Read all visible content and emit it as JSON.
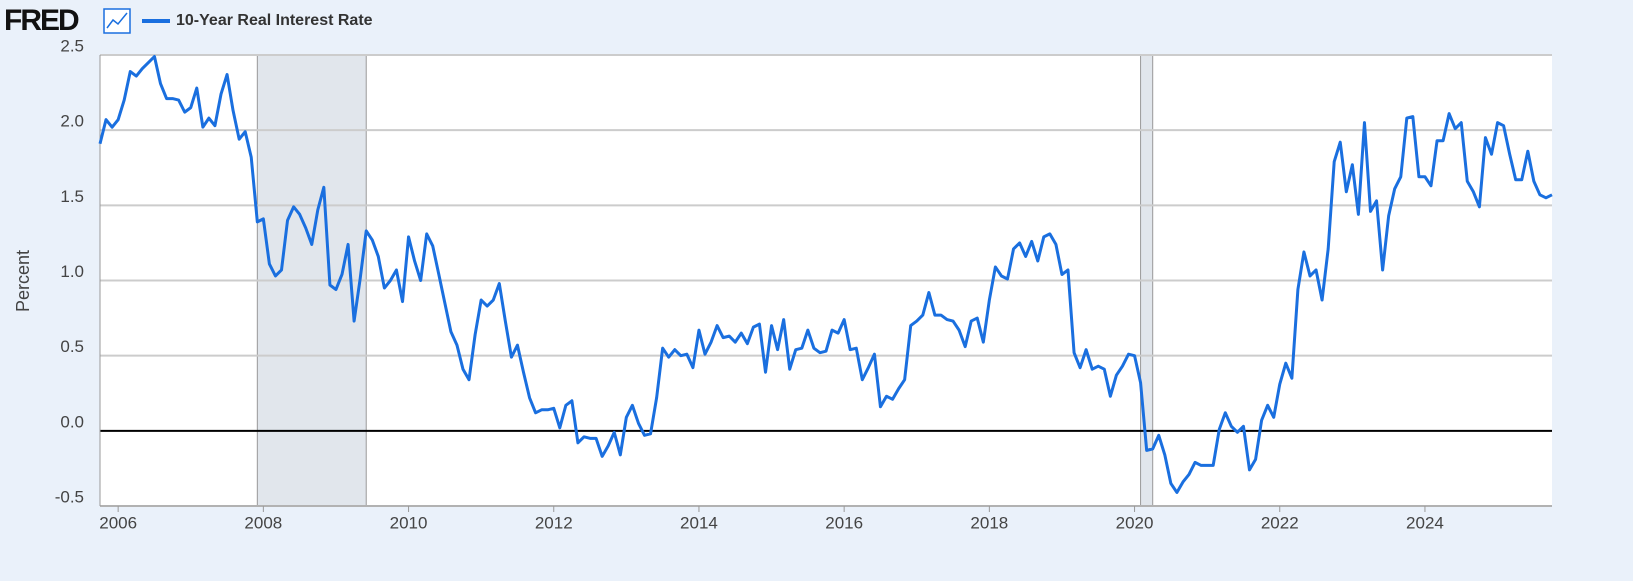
{
  "header": {
    "logo": "FRED"
  },
  "chart_data": {
    "type": "line",
    "y_label": "Percent",
    "x": [
      2005.75,
      2005.833,
      2005.917,
      2006,
      2006.083,
      2006.167,
      2006.25,
      2006.333,
      2006.417,
      2006.5,
      2006.583,
      2006.667,
      2006.75,
      2006.833,
      2006.917,
      2007,
      2007.083,
      2007.167,
      2007.25,
      2007.333,
      2007.417,
      2007.5,
      2007.583,
      2007.667,
      2007.75,
      2007.833,
      2007.917,
      2008,
      2008.083,
      2008.167,
      2008.25,
      2008.333,
      2008.417,
      2008.5,
      2008.583,
      2008.667,
      2008.75,
      2008.833,
      2008.917,
      2009,
      2009.083,
      2009.167,
      2009.25,
      2009.333,
      2009.417,
      2009.5,
      2009.583,
      2009.667,
      2009.75,
      2009.833,
      2009.917,
      2010,
      2010.083,
      2010.167,
      2010.25,
      2010.333,
      2010.417,
      2010.5,
      2010.583,
      2010.667,
      2010.75,
      2010.833,
      2010.917,
      2011,
      2011.083,
      2011.167,
      2011.25,
      2011.333,
      2011.417,
      2011.5,
      2011.583,
      2011.667,
      2011.75,
      2011.833,
      2011.917,
      2012,
      2012.083,
      2012.167,
      2012.25,
      2012.333,
      2012.417,
      2012.5,
      2012.583,
      2012.667,
      2012.75,
      2012.833,
      2012.917,
      2013,
      2013.083,
      2013.167,
      2013.25,
      2013.333,
      2013.417,
      2013.5,
      2013.583,
      2013.667,
      2013.75,
      2013.833,
      2013.917,
      2014,
      2014.083,
      2014.167,
      2014.25,
      2014.333,
      2014.417,
      2014.5,
      2014.583,
      2014.667,
      2014.75,
      2014.833,
      2014.917,
      2015,
      2015.083,
      2015.167,
      2015.25,
      2015.333,
      2015.417,
      2015.5,
      2015.583,
      2015.667,
      2015.75,
      2015.833,
      2015.917,
      2016,
      2016.083,
      2016.167,
      2016.25,
      2016.333,
      2016.417,
      2016.5,
      2016.583,
      2016.667,
      2016.75,
      2016.833,
      2016.917,
      2017,
      2017.083,
      2017.167,
      2017.25,
      2017.333,
      2017.417,
      2017.5,
      2017.583,
      2017.667,
      2017.75,
      2017.833,
      2017.917,
      2018,
      2018.083,
      2018.167,
      2018.25,
      2018.333,
      2018.417,
      2018.5,
      2018.583,
      2018.667,
      2018.75,
      2018.833,
      2018.917,
      2019,
      2019.083,
      2019.167,
      2019.25,
      2019.333,
      2019.417,
      2019.5,
      2019.583,
      2019.667,
      2019.75,
      2019.833,
      2019.917,
      2020,
      2020.083,
      2020.167,
      2020.25,
      2020.333,
      2020.417,
      2020.5,
      2020.583,
      2020.667,
      2020.75,
      2020.833,
      2020.917,
      2021,
      2021.083,
      2021.167,
      2021.25,
      2021.333,
      2021.417,
      2021.5,
      2021.583,
      2021.667,
      2021.75,
      2021.833,
      2021.917,
      2022,
      2022.083,
      2022.167,
      2022.25,
      2022.333,
      2022.417,
      2022.5,
      2022.583,
      2022.667,
      2022.75,
      2022.833,
      2022.917,
      2023,
      2023.083,
      2023.167,
      2023.25,
      2023.333,
      2023.417,
      2023.5,
      2023.583,
      2023.667,
      2023.75,
      2023.833,
      2023.917,
      2024,
      2024.083,
      2024.167,
      2024.25,
      2024.333,
      2024.417,
      2024.5,
      2024.583,
      2024.667,
      2024.75,
      2024.833,
      2024.917,
      2025,
      2025.083,
      2025.167,
      2025.25,
      2025.333,
      2025.417,
      2025.5,
      2025.583,
      2025.667,
      2025.75
    ],
    "series": [
      {
        "name": "10-Year Real Interest Rate",
        "color": "#1a6fdf",
        "values": [
          1.91,
          2.07,
          2.02,
          2.07,
          2.2,
          2.39,
          2.36,
          2.41,
          2.45,
          2.49,
          2.31,
          2.21,
          2.21,
          2.2,
          2.12,
          2.15,
          2.28,
          2.02,
          2.08,
          2.03,
          2.24,
          2.37,
          2.13,
          1.94,
          1.99,
          1.82,
          1.39,
          1.41,
          1.11,
          1.03,
          1.07,
          1.4,
          1.49,
          1.44,
          1.35,
          1.24,
          1.47,
          1.62,
          0.97,
          0.94,
          1.04,
          1.24,
          0.73,
          1.01,
          1.33,
          1.27,
          1.16,
          0.95,
          1.0,
          1.07,
          0.86,
          1.29,
          1.13,
          1.0,
          1.31,
          1.23,
          1.04,
          0.85,
          0.66,
          0.57,
          0.41,
          0.34,
          0.64,
          0.87,
          0.83,
          0.87,
          0.98,
          0.73,
          0.49,
          0.57,
          0.39,
          0.22,
          0.12,
          0.14,
          0.14,
          0.15,
          0.02,
          0.17,
          0.2,
          -0.08,
          -0.04,
          -0.05,
          -0.05,
          -0.17,
          -0.1,
          -0.01,
          -0.16,
          0.09,
          0.17,
          0.05,
          -0.03,
          -0.02,
          0.22,
          0.55,
          0.49,
          0.54,
          0.5,
          0.51,
          0.42,
          0.67,
          0.51,
          0.59,
          0.7,
          0.62,
          0.63,
          0.59,
          0.65,
          0.58,
          0.69,
          0.71,
          0.39,
          0.7,
          0.54,
          0.74,
          0.41,
          0.54,
          0.55,
          0.67,
          0.55,
          0.52,
          0.53,
          0.67,
          0.65,
          0.74,
          0.54,
          0.55,
          0.34,
          0.42,
          0.51,
          0.16,
          0.23,
          0.21,
          0.28,
          0.34,
          0.7,
          0.73,
          0.77,
          0.92,
          0.77,
          0.77,
          0.74,
          0.73,
          0.67,
          0.56,
          0.73,
          0.75,
          0.59,
          0.87,
          1.09,
          1.03,
          1.01,
          1.21,
          1.25,
          1.16,
          1.26,
          1.13,
          1.29,
          1.31,
          1.24,
          1.04,
          1.07,
          0.52,
          0.42,
          0.54,
          0.41,
          0.43,
          0.41,
          0.23,
          0.37,
          0.43,
          0.51,
          0.5,
          0.32,
          -0.13,
          -0.12,
          -0.03,
          -0.16,
          -0.35,
          -0.41,
          -0.34,
          -0.29,
          -0.21,
          -0.23,
          -0.23,
          -0.23,
          0.01,
          0.12,
          0.03,
          -0.01,
          0.03,
          -0.26,
          -0.19,
          0.07,
          0.17,
          0.09,
          0.31,
          0.45,
          0.35,
          0.94,
          1.19,
          1.03,
          1.07,
          0.87,
          1.21,
          1.79,
          1.92,
          1.59,
          1.77,
          1.44,
          2.05,
          1.46,
          1.53,
          1.07,
          1.43,
          1.61,
          1.69,
          2.08,
          2.09,
          1.69,
          1.69,
          1.63,
          1.93,
          1.93,
          2.11,
          2.01,
          2.05,
          1.66,
          1.59,
          1.49,
          1.95,
          1.84,
          2.05,
          2.03,
          1.84,
          1.67,
          1.67,
          1.86,
          1.66,
          1.57,
          1.55,
          1.57
        ]
      }
    ],
    "recessions": [
      {
        "start": 2007.917,
        "end": 2009.417
      },
      {
        "start": 2020.083,
        "end": 2020.25
      }
    ],
    "recession_color": "#e1e6ec",
    "xlim": [
      2005.75,
      2025.75
    ],
    "xticks": [
      2006,
      2008,
      2010,
      2012,
      2014,
      2016,
      2018,
      2020,
      2022,
      2024
    ],
    "ylim": [
      -0.5,
      2.5
    ],
    "yticks": [
      -0.5,
      {
        "value": 0,
        "label": "0.0"
      },
      0.5,
      {
        "value": 1,
        "label": "1.0"
      },
      1.5,
      {
        "value": 2,
        "label": "2.0"
      },
      2.5
    ],
    "grid": true,
    "zero_line": true
  }
}
